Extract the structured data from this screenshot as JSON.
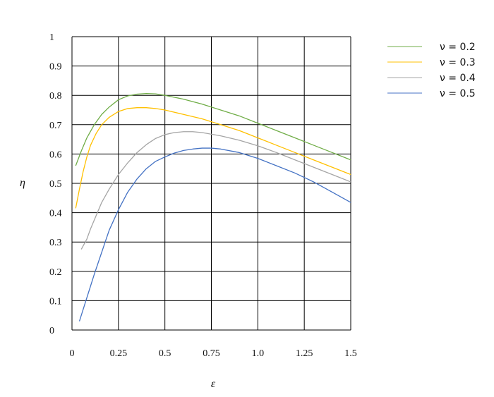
{
  "chart_data": {
    "type": "line",
    "title": "",
    "xlabel": "ε",
    "ylabel": "η",
    "xlim": [
      0,
      1.5
    ],
    "ylim": [
      0,
      1
    ],
    "grid": true,
    "legend_position": "top-right",
    "x_ticks": [
      "0",
      "0.25",
      "0.5",
      "0.75",
      "1.0",
      "1.25",
      "1.5"
    ],
    "x_tick_values": [
      0,
      0.25,
      0.5,
      0.75,
      1.0,
      1.25,
      1.5
    ],
    "y_ticks": [
      "0",
      "0.1",
      "0.2",
      "0.3",
      "0.4",
      "0.5",
      "0.6",
      "0.7",
      "0.8",
      "0.9",
      "1"
    ],
    "y_tick_values": [
      0,
      0.1,
      0.2,
      0.3,
      0.4,
      0.5,
      0.6,
      0.7,
      0.8,
      0.9,
      1
    ],
    "series": [
      {
        "name": "ν = 0.2",
        "color": "#70ad47",
        "x": [
          0.02,
          0.05,
          0.08,
          0.12,
          0.16,
          0.2,
          0.25,
          0.3,
          0.35,
          0.4,
          0.45,
          0.5,
          0.6,
          0.7,
          0.8,
          0.9,
          1.0,
          1.1,
          1.2,
          1.3,
          1.4,
          1.5
        ],
        "y": [
          0.56,
          0.61,
          0.655,
          0.7,
          0.735,
          0.76,
          0.785,
          0.798,
          0.804,
          0.806,
          0.805,
          0.8,
          0.787,
          0.77,
          0.75,
          0.73,
          0.705,
          0.68,
          0.655,
          0.63,
          0.605,
          0.58
        ]
      },
      {
        "name": "ν = 0.3",
        "color": "#ffc000",
        "x": [
          0.02,
          0.04,
          0.06,
          0.08,
          0.1,
          0.13,
          0.16,
          0.2,
          0.25,
          0.3,
          0.35,
          0.4,
          0.45,
          0.5,
          0.6,
          0.7,
          0.8,
          0.9,
          1.0,
          1.1,
          1.2,
          1.3,
          1.4,
          1.5
        ],
        "y": [
          0.415,
          0.48,
          0.54,
          0.59,
          0.63,
          0.67,
          0.7,
          0.725,
          0.745,
          0.755,
          0.758,
          0.758,
          0.755,
          0.75,
          0.735,
          0.72,
          0.7,
          0.68,
          0.655,
          0.63,
          0.605,
          0.58,
          0.555,
          0.53
        ]
      },
      {
        "name": "ν = 0.4",
        "color": "#a5a5a5",
        "x": [
          0.05,
          0.08,
          0.1,
          0.13,
          0.16,
          0.2,
          0.25,
          0.3,
          0.35,
          0.4,
          0.45,
          0.5,
          0.55,
          0.6,
          0.65,
          0.7,
          0.8,
          0.9,
          1.0,
          1.1,
          1.2,
          1.3,
          1.4,
          1.5
        ],
        "y": [
          0.275,
          0.31,
          0.345,
          0.39,
          0.435,
          0.48,
          0.53,
          0.57,
          0.605,
          0.632,
          0.653,
          0.666,
          0.673,
          0.676,
          0.676,
          0.673,
          0.662,
          0.647,
          0.628,
          0.605,
          0.58,
          0.555,
          0.53,
          0.505
        ]
      },
      {
        "name": "ν = 0.5",
        "color": "#4472c4",
        "x": [
          0.04,
          0.08,
          0.12,
          0.16,
          0.2,
          0.25,
          0.3,
          0.35,
          0.4,
          0.45,
          0.5,
          0.55,
          0.6,
          0.65,
          0.7,
          0.75,
          0.8,
          0.9,
          1.0,
          1.1,
          1.2,
          1.3,
          1.4,
          1.5
        ],
        "y": [
          0.03,
          0.11,
          0.19,
          0.265,
          0.34,
          0.41,
          0.47,
          0.515,
          0.55,
          0.575,
          0.59,
          0.603,
          0.612,
          0.617,
          0.62,
          0.62,
          0.617,
          0.605,
          0.585,
          0.56,
          0.535,
          0.505,
          0.47,
          0.435
        ]
      }
    ]
  }
}
